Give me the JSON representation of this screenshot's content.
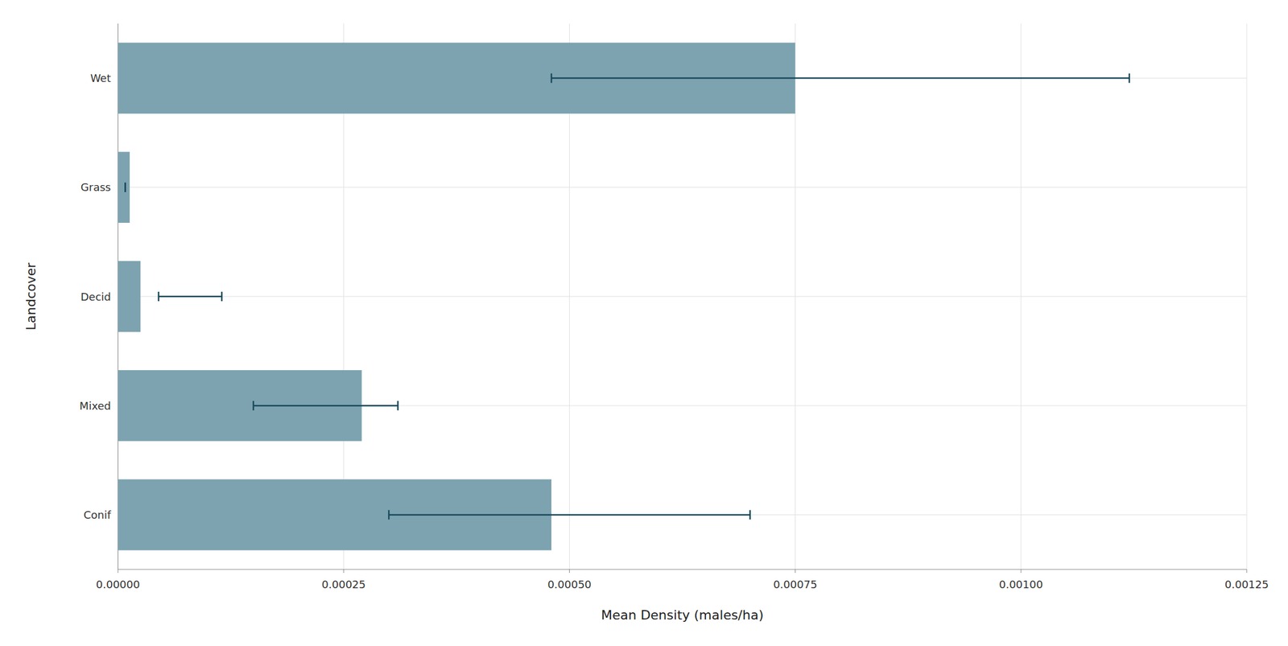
{
  "chart_data": {
    "type": "bar",
    "orientation": "horizontal",
    "xlabel": "Mean Density (males/ha)",
    "ylabel": "Landcover",
    "categories": [
      "Conif",
      "Mixed",
      "Decid",
      "Grass",
      "Wet"
    ],
    "values": [
      0.00048,
      0.00027,
      2.5e-05,
      1.3e-05,
      0.00075
    ],
    "error_lower": [
      0.0003,
      0.00015,
      4.5e-05,
      8e-06,
      0.00048
    ],
    "error_upper": [
      0.0007,
      0.00031,
      0.000115,
      8e-06,
      0.00112
    ],
    "color": "#7da3b0",
    "xlim": [
      0.0,
      0.00125
    ],
    "xticks": [
      {
        "value": 0.0,
        "label": "0.00000"
      },
      0.00025,
      {
        "value": 0.0005,
        "label": "0.00050"
      },
      0.00075,
      {
        "value": 0.001,
        "label": "0.00100"
      },
      0.00125
    ],
    "grid": true
  }
}
